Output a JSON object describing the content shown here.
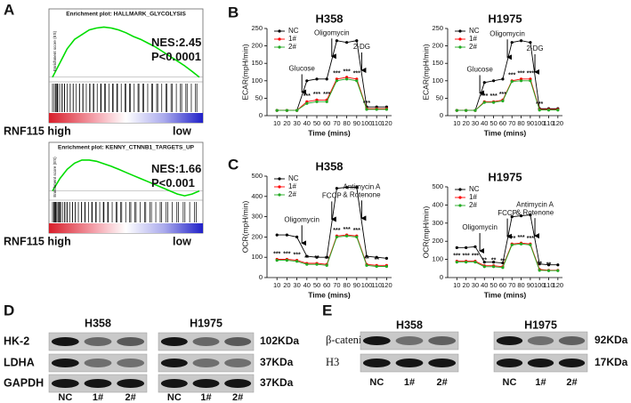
{
  "panel_labels": [
    "A",
    "B",
    "C",
    "D",
    "E"
  ],
  "chart_data": [
    {
      "type": "gsea",
      "title": "Enrichment plot: HALLMARK_GLYCOLYSIS",
      "ylabel": "Enrichment score (ES)",
      "values": [
        0,
        0.15,
        0.3,
        0.4,
        0.45,
        0.5,
        0.52,
        0.53,
        0.52,
        0.5,
        0.47,
        0.43,
        0.4,
        0.36,
        0.32,
        0.27,
        0.22,
        0.17,
        0.12,
        0.06,
        0
      ],
      "ylim": [
        -0.05,
        0.6
      ],
      "color": "#00dd00",
      "annotations": [
        "NES:2.45",
        "P<0.0001"
      ],
      "high_label": "RNF115 high",
      "low_label": "low"
    },
    {
      "type": "gsea",
      "title": "Enrichment plot: KENNY_CTNNB1_TARGETS_UP",
      "ylabel": "Enrichment score (ES)",
      "values": [
        0,
        0.2,
        0.35,
        0.45,
        0.5,
        0.5,
        0.48,
        0.44,
        0.4,
        0.35,
        0.3,
        0.25,
        0.2,
        0.15,
        0.1,
        0.05,
        0,
        -0.05,
        -0.08,
        -0.05,
        0
      ],
      "ylim": [
        -0.15,
        0.6
      ],
      "color": "#00dd00",
      "annotations": [
        "NES:1.66",
        "P<0.001"
      ],
      "high_label": "RNF115 high",
      "low_label": "low"
    },
    {
      "type": "line",
      "title": "H358",
      "xlabel": "Time (mins)",
      "ylabel": "ECAR(mpH/min)",
      "x": [
        10,
        20,
        30,
        40,
        50,
        60,
        70,
        80,
        90,
        100,
        110,
        120
      ],
      "xlim": [
        0,
        125
      ],
      "xticks": [
        10,
        20,
        30,
        40,
        50,
        60,
        70,
        80,
        90,
        100,
        110,
        120
      ],
      "ylim": [
        0,
        250
      ],
      "yticks": [
        0,
        50,
        100,
        150,
        200,
        250
      ],
      "legend": "upper-left",
      "series": [
        {
          "name": "NC",
          "color": "#000000",
          "values": [
            15,
            15,
            15,
            100,
            105,
            105,
            215,
            210,
            215,
            25,
            25,
            25
          ]
        },
        {
          "name": "1#",
          "color": "#ff0000",
          "values": [
            15,
            15,
            15,
            40,
            45,
            45,
            105,
            110,
            105,
            20,
            20,
            20
          ]
        },
        {
          "name": "2#",
          "color": "#22aa22",
          "values": [
            15,
            15,
            15,
            35,
            40,
            40,
            100,
            105,
            100,
            18,
            18,
            18
          ]
        }
      ],
      "annotations": [
        {
          "lines": [
            "Glucose"
          ],
          "x": 35
        },
        {
          "lines": [
            "Oligomycin"
          ],
          "x": 65
        },
        {
          "lines": [
            "2-DG"
          ],
          "x": 95
        }
      ],
      "significance": [
        null,
        null,
        null,
        "***",
        "***",
        "***",
        "***",
        "***",
        "***",
        "***",
        null,
        null
      ]
    },
    {
      "type": "line",
      "title": "H1975",
      "xlabel": "Time (mins)",
      "ylabel": "ECAR(mpH/min)",
      "x": [
        10,
        20,
        30,
        40,
        50,
        60,
        70,
        80,
        90,
        100,
        110,
        120
      ],
      "xlim": [
        0,
        125
      ],
      "xticks": [
        10,
        20,
        30,
        40,
        50,
        60,
        70,
        80,
        90,
        100,
        110,
        120
      ],
      "ylim": [
        0,
        250
      ],
      "yticks": [
        0,
        50,
        100,
        150,
        200,
        250
      ],
      "legend": "upper-left",
      "series": [
        {
          "name": "NC",
          "color": "#000000",
          "values": [
            15,
            15,
            15,
            95,
            100,
            105,
            210,
            215,
            210,
            20,
            20,
            20
          ]
        },
        {
          "name": "1#",
          "color": "#ff0000",
          "values": [
            15,
            15,
            15,
            40,
            40,
            45,
            100,
            105,
            105,
            18,
            18,
            18
          ]
        },
        {
          "name": "2#",
          "color": "#22aa22",
          "values": [
            15,
            15,
            15,
            38,
            38,
            42,
            98,
            100,
            100,
            16,
            16,
            16
          ]
        }
      ],
      "annotations": [
        {
          "lines": [
            "Glucose"
          ],
          "x": 35
        },
        {
          "lines": [
            "Oligomycin"
          ],
          "x": 65
        },
        {
          "lines": [
            "2-DG"
          ],
          "x": 95
        }
      ],
      "significance": [
        null,
        null,
        null,
        "***",
        "***",
        "***",
        "***",
        "***",
        "***",
        "***",
        null,
        null
      ]
    },
    {
      "type": "line",
      "title": "H358",
      "xlabel": "Time (mins)",
      "ylabel": "OCR(mpH/min)",
      "x": [
        10,
        20,
        30,
        40,
        50,
        60,
        70,
        80,
        90,
        100,
        110,
        120
      ],
      "xlim": [
        0,
        125
      ],
      "xticks": [
        10,
        20,
        30,
        40,
        50,
        60,
        70,
        80,
        90,
        100,
        110,
        120
      ],
      "ylim": [
        0,
        500
      ],
      "yticks": [
        0,
        100,
        200,
        300,
        400,
        500
      ],
      "legend": "upper-left",
      "series": [
        {
          "name": "NC",
          "color": "#000000",
          "values": [
            210,
            210,
            200,
            105,
            100,
            100,
            440,
            445,
            445,
            105,
            100,
            95
          ]
        },
        {
          "name": "1#",
          "color": "#ff0000",
          "values": [
            90,
            90,
            85,
            70,
            70,
            65,
            205,
            210,
            205,
            65,
            60,
            60
          ]
        },
        {
          "name": "2#",
          "color": "#22aa22",
          "values": [
            85,
            85,
            80,
            65,
            65,
            60,
            200,
            205,
            200,
            60,
            55,
            55
          ]
        }
      ],
      "annotations": [
        {
          "lines": [
            "Oligomycin"
          ],
          "x": 35
        },
        {
          "lines": [
            "FCCP"
          ],
          "x": 65
        },
        {
          "lines": [
            "Antimycin A",
            "& Rotenone"
          ],
          "x": 95
        }
      ],
      "significance": [
        "***",
        "***",
        "***",
        "**",
        "**",
        "**",
        "***",
        "***",
        "***",
        "**",
        "**",
        null
      ]
    },
    {
      "type": "line",
      "title": "H1975",
      "xlabel": "Time (mins)",
      "ylabel": "OCR(mpH/min)",
      "x": [
        10,
        20,
        30,
        40,
        50,
        60,
        70,
        80,
        90,
        100,
        110,
        120
      ],
      "xlim": [
        0,
        125
      ],
      "xticks": [
        10,
        20,
        30,
        40,
        50,
        60,
        70,
        80,
        90,
        100,
        110,
        120
      ],
      "ylim": [
        0,
        500
      ],
      "yticks": [
        0,
        100,
        200,
        300,
        400,
        500
      ],
      "legend": "upper-left",
      "series": [
        {
          "name": "NC",
          "color": "#000000",
          "values": [
            165,
            165,
            170,
            85,
            85,
            80,
            335,
            340,
            345,
            75,
            70,
            70
          ]
        },
        {
          "name": "1#",
          "color": "#ff0000",
          "values": [
            90,
            90,
            90,
            65,
            65,
            60,
            185,
            190,
            185,
            45,
            40,
            40
          ]
        },
        {
          "name": "2#",
          "color": "#22aa22",
          "values": [
            85,
            85,
            85,
            60,
            60,
            55,
            180,
            185,
            180,
            40,
            38,
            38
          ]
        }
      ],
      "annotations": [
        {
          "lines": [
            "Oligomycin"
          ],
          "x": 35
        },
        {
          "lines": [
            "FCCP"
          ],
          "x": 65
        },
        {
          "lines": [
            "Antimycin A",
            "& Rotenone"
          ],
          "x": 95
        }
      ],
      "significance": [
        "***",
        "***",
        "***",
        "**",
        "**",
        "**",
        "***",
        "***",
        "***",
        "**",
        "**",
        null
      ]
    }
  ],
  "blots": [
    {
      "cell_lines": [
        "H358",
        "H1975"
      ],
      "rows": [
        "HK-2",
        "LDHA",
        "GAPDH"
      ],
      "sizes": [
        "102KDa",
        "37KDa",
        "37KDa"
      ],
      "lanes": [
        "NC",
        "1#",
        "2#"
      ]
    },
    {
      "cell_lines": [
        "H358",
        "H1975"
      ],
      "rows": [
        "β-catenin",
        "H3"
      ],
      "sizes": [
        "92KDa",
        "17KDa"
      ],
      "lanes": [
        "NC",
        "1#",
        "2#"
      ]
    }
  ]
}
